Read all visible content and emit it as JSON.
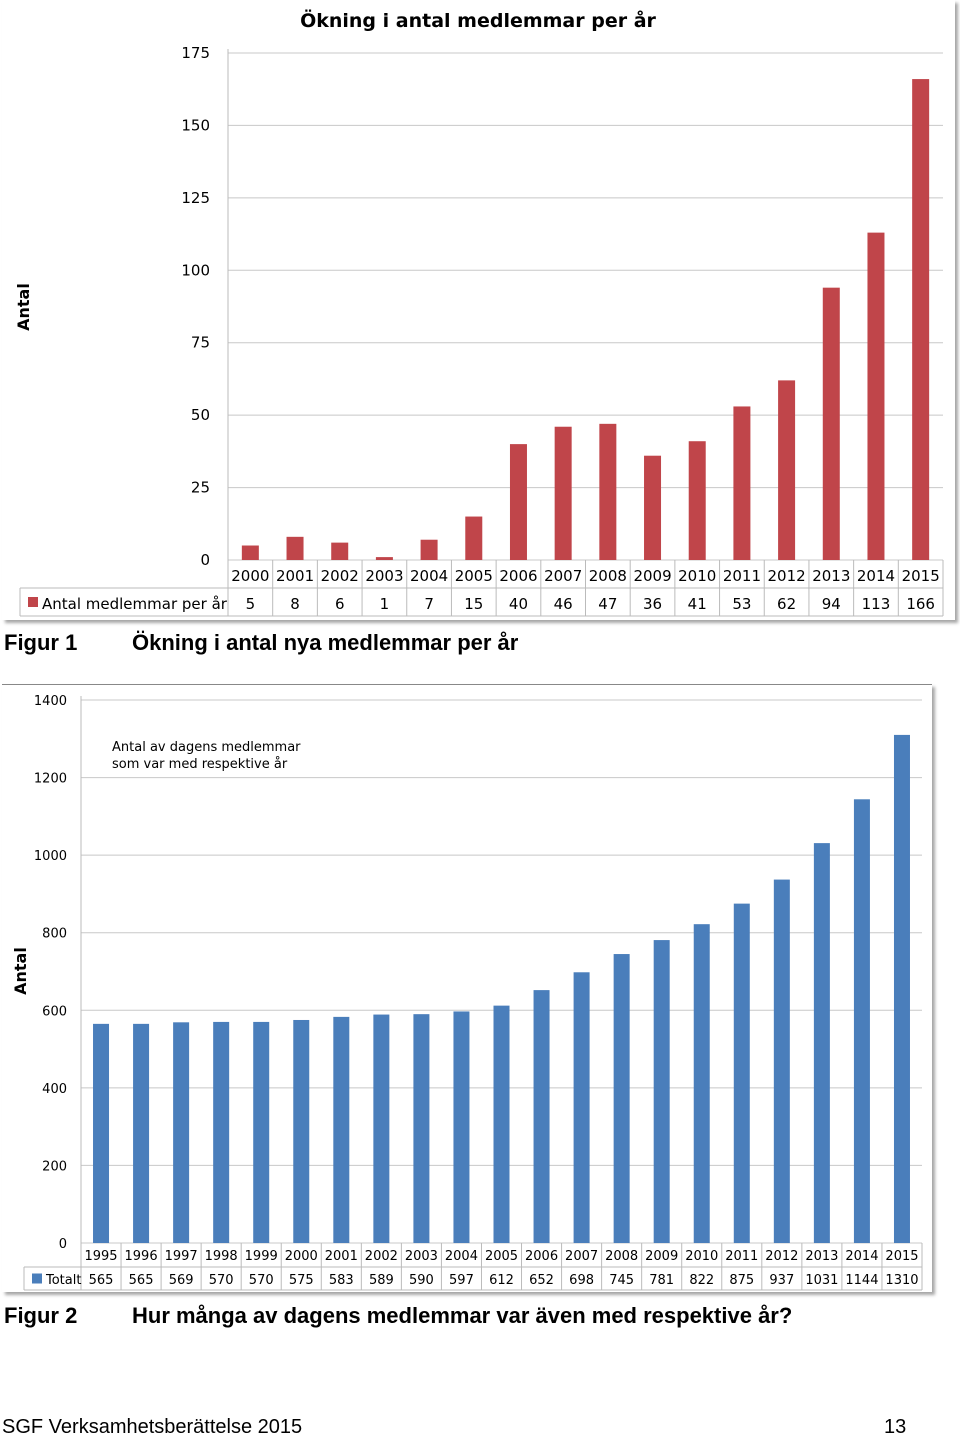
{
  "figure1": {
    "caption_label": "Figur 1",
    "caption_text": "Ökning i antal nya medlemmar per år"
  },
  "figure2": {
    "caption_label": "Figur 2",
    "caption_text": "Hur många av dagens medlemmar var även med respektive år?"
  },
  "footer": {
    "left": "SGF Verksamhetsberättelse 2015",
    "page_number": "13"
  },
  "chart_data": [
    {
      "type": "bar",
      "title": "Ökning i antal medlemmar per år",
      "ylabel": "Antal",
      "xlabel": "",
      "ylim": [
        0,
        175
      ],
      "yticks": [
        0,
        25,
        50,
        75,
        100,
        125,
        150,
        175
      ],
      "grid": true,
      "legend": "data-table",
      "color": "#C0454A",
      "categories": [
        "2000",
        "2001",
        "2002",
        "2003",
        "2004",
        "2005",
        "2006",
        "2007",
        "2008",
        "2009",
        "2010",
        "2011",
        "2012",
        "2013",
        "2014",
        "2015"
      ],
      "series": [
        {
          "name": "Antal medlemmar per år",
          "values": [
            5,
            8,
            6,
            1,
            7,
            15,
            40,
            46,
            47,
            36,
            41,
            53,
            62,
            94,
            113,
            166
          ]
        }
      ]
    },
    {
      "type": "bar",
      "title": "",
      "annotation": "Antal av dagens medlemmar som var med respektive år",
      "annotation_lines": [
        "Antal av dagens medlemmar",
        "som var med respektive år"
      ],
      "ylabel": "Antal",
      "xlabel": "",
      "ylim": [
        0,
        1400
      ],
      "yticks": [
        0,
        200,
        400,
        600,
        800,
        1000,
        1200,
        1400
      ],
      "grid": true,
      "legend": "data-table",
      "color": "#4A7EBB",
      "categories": [
        "1995",
        "1996",
        "1997",
        "1998",
        "1999",
        "2000",
        "2001",
        "2002",
        "2003",
        "2004",
        "2005",
        "2006",
        "2007",
        "2008",
        "2009",
        "2010",
        "2011",
        "2012",
        "2013",
        "2014",
        "2015"
      ],
      "series": [
        {
          "name": "Totalt",
          "values": [
            565,
            565,
            569,
            570,
            570,
            575,
            583,
            589,
            590,
            597,
            612,
            652,
            698,
            745,
            781,
            822,
            875,
            937,
            1031,
            1144,
            1310
          ]
        }
      ]
    }
  ]
}
